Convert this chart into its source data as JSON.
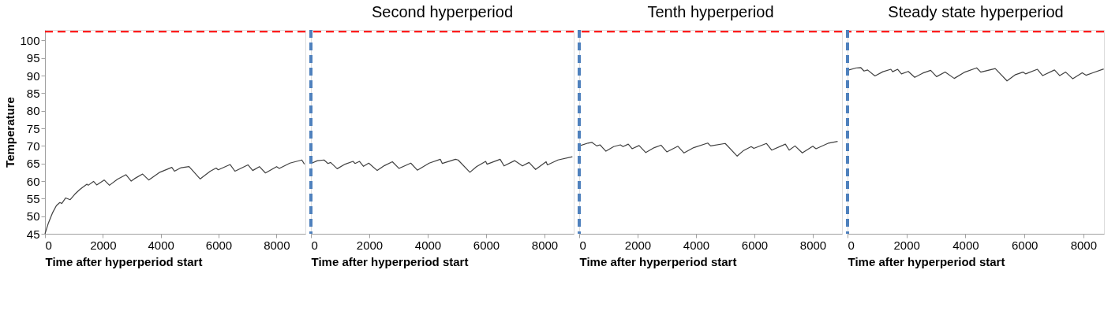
{
  "chart_data": [
    {
      "type": "line",
      "xlabel": "Time after hyperperiod start",
      "ylabel": "Temperature",
      "xlim": [
        0,
        9000
      ],
      "xticks": [
        0,
        2000,
        4000,
        6000,
        8000
      ],
      "ylim": [
        45,
        103
      ],
      "yticks": [
        45,
        50,
        55,
        60,
        65,
        70,
        75,
        80,
        85,
        90,
        95,
        100
      ],
      "grid": false,
      "x": [
        0,
        120,
        257,
        394,
        514,
        578,
        715,
        871,
        1036,
        1220,
        1449,
        1495,
        1678,
        1788,
        2045,
        2228,
        2503,
        2797,
        2980,
        3099,
        3374,
        3585,
        3970,
        4383,
        4475,
        4704,
        4979,
        5364,
        5713,
        5915,
        5988,
        6400,
        6566,
        7015,
        7180,
        7410,
        7620,
        8005,
        8097,
        8464,
        8876,
        8968
      ],
      "series": [
        {
          "color": "#404040",
          "values": [
            45,
            48.1,
            50.9,
            53.0,
            53.9,
            53.6,
            55.2,
            54.7,
            56.3,
            57.7,
            59.1,
            58.8,
            59.9,
            58.9,
            60.3,
            58.8,
            60.5,
            61.8,
            60.0,
            60.7,
            62.0,
            60.3,
            62.5,
            63.9,
            62.8,
            63.8,
            64.1,
            60.6,
            62.8,
            63.7,
            63.2,
            64.7,
            62.8,
            64.6,
            63.0,
            64.1,
            62.3,
            64.1,
            63.6,
            65.1,
            66.0,
            64.8
          ]
        }
      ],
      "ref_lines": [
        {
          "axis": "y",
          "value": 102.5,
          "color": "#ff0000",
          "line_style": "dashed"
        }
      ]
    },
    {
      "type": "line",
      "title": "Second hyperperiod",
      "xlabel": "Time after hyperperiod start",
      "xlim": [
        0,
        9000
      ],
      "xticks": [
        0,
        2000,
        4000,
        6000,
        8000
      ],
      "ylim": [
        45,
        103
      ],
      "tick_labels": "x",
      "grid": false,
      "x": [
        0,
        225,
        450,
        585,
        675,
        900,
        1170,
        1440,
        1510,
        1665,
        1800,
        1980,
        2270,
        2520,
        2790,
        3015,
        3420,
        3645,
        4050,
        4430,
        4500,
        4950,
        5040,
        5445,
        5670,
        5985,
        6030,
        6480,
        6615,
        6975,
        7245,
        7470,
        7695,
        8055,
        8100,
        8460,
        8955
      ],
      "series": [
        {
          "color": "#404040",
          "values": [
            65.0,
            65.8,
            66.0,
            65.0,
            65.3,
            63.5,
            64.8,
            65.6,
            65.0,
            65.6,
            64.2,
            65.1,
            63.0,
            64.4,
            65.5,
            63.6,
            65.1,
            63.1,
            65.1,
            66.2,
            65.0,
            66.2,
            66.0,
            62.5,
            64.1,
            65.6,
            64.8,
            66.2,
            64.3,
            65.8,
            64.3,
            65.3,
            63.3,
            65.5,
            64.6,
            66.0,
            66.9
          ]
        }
      ],
      "ref_lines": [
        {
          "axis": "y",
          "value": 102.5,
          "color": "#ff0000",
          "line_style": "dashed"
        },
        {
          "axis": "x",
          "value": 0,
          "color": "#4f81bd",
          "line_style": "dashed"
        }
      ]
    },
    {
      "type": "line",
      "title": "Tenth hyperperiod",
      "xlabel": "Time after hyperperiod start",
      "xlim": [
        0,
        9000
      ],
      "xticks": [
        0,
        2000,
        4000,
        6000,
        8000
      ],
      "ylim": [
        45,
        103
      ],
      "tick_labels": "x",
      "grid": false,
      "x": [
        0,
        300,
        440,
        600,
        710,
        915,
        1180,
        1410,
        1500,
        1680,
        1810,
        2050,
        2280,
        2570,
        2800,
        3000,
        3380,
        3590,
        3920,
        4400,
        4500,
        5000,
        5410,
        5630,
        5890,
        5980,
        6410,
        6590,
        7060,
        7190,
        7390,
        7640,
        8000,
        8110,
        8540,
        8850
      ],
      "series": [
        {
          "color": "#404040",
          "values": [
            70.0,
            70.8,
            71.0,
            70.0,
            70.3,
            68.5,
            69.8,
            70.3,
            69.8,
            70.5,
            69.2,
            70.1,
            68.1,
            69.5,
            70.2,
            68.3,
            69.9,
            68.0,
            69.5,
            70.8,
            70.0,
            70.7,
            67.1,
            68.7,
            69.8,
            69.3,
            70.7,
            68.8,
            70.5,
            68.8,
            70.0,
            68.0,
            69.9,
            69.2,
            70.8,
            71.3
          ]
        }
      ],
      "ref_lines": [
        {
          "axis": "y",
          "value": 102.5,
          "color": "#ff0000",
          "line_style": "dashed"
        },
        {
          "axis": "x",
          "value": 0,
          "color": "#4f81bd",
          "line_style": "dashed"
        }
      ]
    },
    {
      "type": "line",
      "title": "Steady state hyperperiod",
      "xlabel": "Time after hyperperiod start",
      "xlim": [
        0,
        8700
      ],
      "xticks": [
        0,
        2000,
        4000,
        6000,
        8000
      ],
      "ylim": [
        45,
        103
      ],
      "tick_labels": "x",
      "grid": false,
      "x": [
        0,
        295,
        445,
        560,
        680,
        930,
        1200,
        1470,
        1530,
        1700,
        1830,
        2060,
        2280,
        2550,
        2820,
        3020,
        3310,
        3620,
        3980,
        4380,
        4520,
        5010,
        5410,
        5680,
        5950,
        6040,
        6440,
        6620,
        7020,
        7200,
        7400,
        7640,
        7960,
        8090,
        8320,
        8690
      ],
      "series": [
        {
          "color": "#404040",
          "values": [
            91.5,
            92.2,
            92.3,
            91.3,
            91.6,
            89.9,
            91.1,
            91.8,
            91.1,
            91.8,
            90.5,
            91.2,
            89.5,
            90.7,
            91.5,
            89.7,
            91.0,
            89.2,
            91.0,
            92.2,
            91.0,
            92.0,
            88.5,
            90.2,
            91.0,
            90.5,
            91.8,
            90.0,
            91.6,
            90.0,
            91.0,
            89.1,
            90.8,
            90.1,
            90.8,
            91.9
          ]
        }
      ],
      "ref_lines": [
        {
          "axis": "y",
          "value": 102.5,
          "color": "#ff0000",
          "line_style": "dashed"
        },
        {
          "axis": "x",
          "value": 0,
          "color": "#4f81bd",
          "line_style": "dashed"
        }
      ]
    }
  ]
}
